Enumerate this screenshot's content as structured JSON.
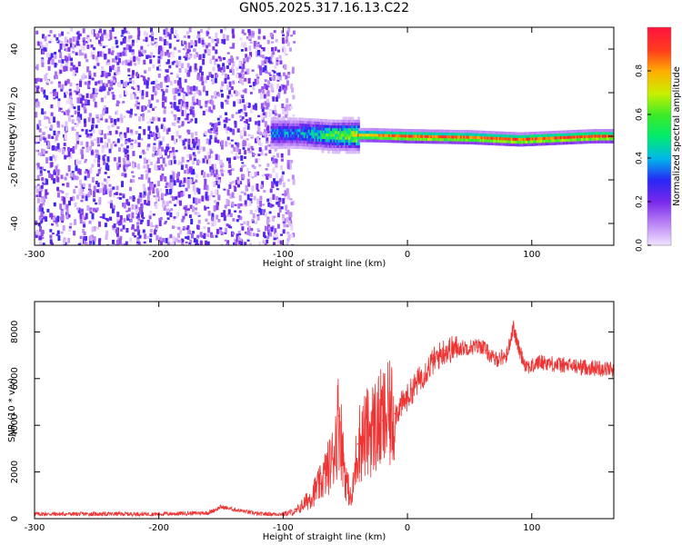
{
  "title": "GN05.2025.317.16.13.C22",
  "chart_data": [
    {
      "type": "heatmap",
      "title": "GN05.2025.317.16.13.C22",
      "xlabel": "Height of straight line (km)",
      "ylabel": "Frequency (Hz)",
      "xlim": [
        -300,
        166
      ],
      "ylim": [
        -50,
        50
      ],
      "x_ticks": [
        -300,
        -200,
        -100,
        0,
        100
      ],
      "y_ticks": [
        -40,
        -20,
        0,
        20,
        40
      ],
      "colorbar": {
        "label": "Normalized spectral amplitude",
        "range": [
          0,
          1
        ],
        "ticks": [
          0.0,
          0.2,
          0.4,
          0.6,
          0.8
        ]
      },
      "description_points": {
        "noise_region_km": [
          -300,
          -100
        ],
        "signal_ridge": [
          {
            "x": -90,
            "freq": 2,
            "amp": 0.35
          },
          {
            "x": -60,
            "freq": 1,
            "amp": 0.55
          },
          {
            "x": -30,
            "freq": 1,
            "amp": 0.85
          },
          {
            "x": 0,
            "freq": 0.5,
            "amp": 0.95
          },
          {
            "x": 50,
            "freq": 0,
            "amp": 0.9
          },
          {
            "x": 90,
            "freq": -1,
            "amp": 0.95
          },
          {
            "x": 150,
            "freq": 0.5,
            "amp": 0.95
          }
        ]
      }
    },
    {
      "type": "line",
      "xlabel": "Height of straight line (km)",
      "ylabel": "SNR (10 * v/v)",
      "xlim": [
        -300,
        166
      ],
      "ylim": [
        0,
        9300
      ],
      "x_ticks": [
        -300,
        -200,
        -100,
        0,
        100
      ],
      "y_ticks": [
        0,
        2000,
        4000,
        6000,
        8000
      ],
      "series": [
        {
          "name": "SNR",
          "color": "#ee3333",
          "x": [
            -300,
            -250,
            -200,
            -160,
            -150,
            -120,
            -100,
            -90,
            -80,
            -70,
            -60,
            -55,
            -50,
            -45,
            -40,
            -30,
            -20,
            -10,
            0,
            10,
            20,
            30,
            40,
            50,
            60,
            70,
            80,
            85,
            90,
            95,
            100,
            105,
            110,
            120,
            140,
            166
          ],
          "y": [
            200,
            200,
            200,
            250,
            500,
            200,
            200,
            300,
            800,
            1500,
            2600,
            4400,
            1800,
            700,
            3200,
            3800,
            4200,
            4500,
            5200,
            6000,
            6700,
            7200,
            7300,
            7350,
            7400,
            6800,
            7000,
            8200,
            7200,
            6600,
            6500,
            6700,
            6700,
            6600,
            6500,
            6400
          ]
        }
      ]
    }
  ]
}
